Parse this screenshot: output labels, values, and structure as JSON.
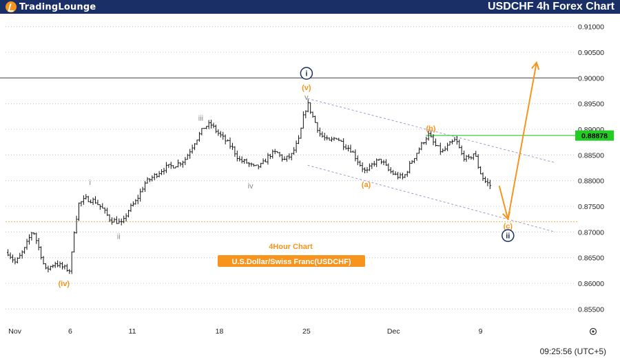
{
  "header": {
    "logo_text": "TradingLounge",
    "title": "USDCHF 4h Forex Chart"
  },
  "footer": {
    "time": "09:25:56 (UTC+5)"
  },
  "colors": {
    "header_bg": "#1a2f66",
    "orange": "#f7941d",
    "navy": "#1a2f66",
    "green": "#22cc22",
    "gray": "#888888",
    "channel": "#9a9ad0"
  },
  "chart_data": {
    "type": "candlestick",
    "symbol": "USDCHF",
    "timeframe": "4h",
    "annotation_title": "4Hour Chart",
    "annotation_subtitle": "U.S.Dollar/Swiss Franc(USDCHF)",
    "ylim": [
      0.8525,
      0.9125
    ],
    "y_ticks": [
      "0.91000",
      "0.90500",
      "0.90000",
      "0.89500",
      "0.89000",
      "0.88500",
      "0.88000",
      "0.87500",
      "0.87000",
      "0.86500",
      "0.86000",
      "0.85500"
    ],
    "x_ticks": [
      {
        "label": "Nov",
        "t": 0
      },
      {
        "label": "6",
        "t": 5
      },
      {
        "label": "11",
        "t": 10
      },
      {
        "label": "18",
        "t": 17
      },
      {
        "label": "25",
        "t": 24
      },
      {
        "label": "Dec",
        "t": 31
      },
      {
        "label": "9",
        "t": 38
      }
    ],
    "price_label": {
      "value": "0.88878",
      "price": 0.88878
    },
    "levels": [
      {
        "name": "resistance",
        "price": 0.9,
        "color": "#555555"
      },
      {
        "name": "target",
        "price": 0.8888,
        "color": "#22cc22"
      },
      {
        "name": "support",
        "price": 0.872,
        "color": "#f7b24d"
      }
    ],
    "series": [
      {
        "t": 0.0,
        "p": 0.866
      },
      {
        "t": 0.6,
        "p": 0.864
      },
      {
        "t": 1.3,
        "p": 0.8665
      },
      {
        "t": 2.0,
        "p": 0.8705
      },
      {
        "t": 2.6,
        "p": 0.866
      },
      {
        "t": 3.0,
        "p": 0.8625
      },
      {
        "t": 3.8,
        "p": 0.864
      },
      {
        "t": 4.5,
        "p": 0.863
      },
      {
        "t": 5.0,
        "p": 0.8625
      },
      {
        "t": 5.3,
        "p": 0.87
      },
      {
        "t": 5.7,
        "p": 0.8755
      },
      {
        "t": 6.3,
        "p": 0.8765
      },
      {
        "t": 7.0,
        "p": 0.876
      },
      {
        "t": 7.6,
        "p": 0.8745
      },
      {
        "t": 8.2,
        "p": 0.8725
      },
      {
        "t": 8.8,
        "p": 0.872
      },
      {
        "t": 9.2,
        "p": 0.8715
      },
      {
        "t": 9.6,
        "p": 0.874
      },
      {
        "t": 10.3,
        "p": 0.876
      },
      {
        "t": 11.0,
        "p": 0.8795
      },
      {
        "t": 11.8,
        "p": 0.881
      },
      {
        "t": 12.6,
        "p": 0.8825
      },
      {
        "t": 13.4,
        "p": 0.883
      },
      {
        "t": 14.2,
        "p": 0.884
      },
      {
        "t": 15.0,
        "p": 0.8875
      },
      {
        "t": 15.8,
        "p": 0.8905
      },
      {
        "t": 16.3,
        "p": 0.891
      },
      {
        "t": 16.8,
        "p": 0.8895
      },
      {
        "t": 17.4,
        "p": 0.888
      },
      {
        "t": 18.0,
        "p": 0.8865
      },
      {
        "t": 18.6,
        "p": 0.884
      },
      {
        "t": 19.2,
        "p": 0.8835
      },
      {
        "t": 19.8,
        "p": 0.8825
      },
      {
        "t": 20.4,
        "p": 0.883
      },
      {
        "t": 21.0,
        "p": 0.885
      },
      {
        "t": 21.6,
        "p": 0.8855
      },
      {
        "t": 22.2,
        "p": 0.884
      },
      {
        "t": 22.8,
        "p": 0.885
      },
      {
        "t": 23.4,
        "p": 0.888
      },
      {
        "t": 23.8,
        "p": 0.893
      },
      {
        "t": 24.1,
        "p": 0.895
      },
      {
        "t": 24.5,
        "p": 0.8925
      },
      {
        "t": 25.1,
        "p": 0.889
      },
      {
        "t": 25.8,
        "p": 0.8875
      },
      {
        "t": 26.4,
        "p": 0.8885
      },
      {
        "t": 27.0,
        "p": 0.887
      },
      {
        "t": 27.6,
        "p": 0.886
      },
      {
        "t": 28.2,
        "p": 0.8835
      },
      {
        "t": 28.8,
        "p": 0.8815
      },
      {
        "t": 29.4,
        "p": 0.8835
      },
      {
        "t": 30.0,
        "p": 0.884
      },
      {
        "t": 30.6,
        "p": 0.882
      },
      {
        "t": 31.2,
        "p": 0.881
      },
      {
        "t": 31.8,
        "p": 0.8805
      },
      {
        "t": 32.4,
        "p": 0.8835
      },
      {
        "t": 33.0,
        "p": 0.886
      },
      {
        "t": 33.5,
        "p": 0.888
      },
      {
        "t": 33.8,
        "p": 0.889
      },
      {
        "t": 34.3,
        "p": 0.887
      },
      {
        "t": 34.9,
        "p": 0.8855
      },
      {
        "t": 35.5,
        "p": 0.887
      },
      {
        "t": 36.0,
        "p": 0.888
      },
      {
        "t": 36.5,
        "p": 0.885
      },
      {
        "t": 37.0,
        "p": 0.884
      },
      {
        "t": 37.5,
        "p": 0.8855
      },
      {
        "t": 37.9,
        "p": 0.882
      },
      {
        "t": 38.3,
        "p": 0.88
      },
      {
        "t": 38.8,
        "p": 0.879
      }
    ],
    "channel": [
      {
        "from": {
          "t": 24.1,
          "p": 0.896
        },
        "to": {
          "t": 44.0,
          "p": 0.8835
        }
      },
      {
        "from": {
          "t": 24.1,
          "p": 0.883
        },
        "to": {
          "t": 44.0,
          "p": 0.87
        }
      }
    ],
    "projection": [
      {
        "t": 39.5,
        "p": 0.879
      },
      {
        "t": 40.2,
        "p": 0.8725
      },
      {
        "t": 42.5,
        "p": 0.903
      }
    ],
    "wave_labels": [
      {
        "text": "i",
        "t": 24.0,
        "p": 0.9009,
        "style": "navy-circle"
      },
      {
        "text": "(v)",
        "t": 24.0,
        "p": 0.8982,
        "style": "orange"
      },
      {
        "text": "v",
        "t": 24.0,
        "p": 0.8963,
        "style": "gray"
      },
      {
        "text": "iii",
        "t": 15.5,
        "p": 0.8922,
        "style": "gray"
      },
      {
        "text": "i",
        "t": 6.6,
        "p": 0.8797,
        "style": "gray"
      },
      {
        "text": "ii",
        "t": 8.9,
        "p": 0.8692,
        "style": "gray"
      },
      {
        "text": "iv",
        "t": 19.5,
        "p": 0.879,
        "style": "gray"
      },
      {
        "text": "(iv)",
        "t": 4.5,
        "p": 0.86,
        "style": "orange"
      },
      {
        "text": "(a)",
        "t": 28.8,
        "p": 0.8793,
        "style": "orange"
      },
      {
        "text": "(b)",
        "t": 34.0,
        "p": 0.8902,
        "style": "orange"
      },
      {
        "text": "(c)",
        "t": 40.2,
        "p": 0.8712,
        "style": "orange"
      },
      {
        "text": "ii",
        "t": 40.2,
        "p": 0.8693,
        "style": "navy-circle"
      }
    ]
  }
}
